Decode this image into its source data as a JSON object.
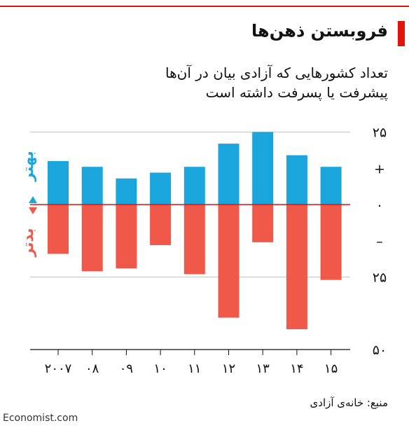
{
  "header": {
    "title": "فروبستن ذهن‌ها",
    "subtitle": "تعداد کشورهایی که آزادی بیان در آن‌ها پیشرفت یا پسرفت داشته است"
  },
  "colors": {
    "better": "#1aa5dc",
    "worse": "#f0584a",
    "zero_line": "#e3120b",
    "gridline": "#c4c4c4",
    "accent": "#e3120b"
  },
  "legend": {
    "better_label": "بهتر",
    "worse_label": "بدتر"
  },
  "chart_data": {
    "type": "bar",
    "categories": [
      "۲۰۰۷",
      "۰۸",
      "۰۹",
      "۱۰",
      "۱۱",
      "۱۲",
      "۱۳",
      "۱۴",
      "۱۵"
    ],
    "series": [
      {
        "name": "بهتر",
        "values": [
          15,
          13,
          9,
          11,
          13,
          21,
          25,
          17,
          13
        ]
      },
      {
        "name": "بدتر",
        "values": [
          -17,
          -23,
          -22,
          -14,
          -24,
          -39,
          -13,
          -43,
          -26
        ]
      }
    ],
    "ylim": [
      -50,
      25
    ],
    "yticks": [
      {
        "value": 25,
        "label": "۲۵"
      },
      {
        "value": 12.5,
        "label": "+"
      },
      {
        "value": 0,
        "label": "۰"
      },
      {
        "value": -12.5,
        "label": "–"
      },
      {
        "value": -25,
        "label": "۲۵"
      },
      {
        "value": -50,
        "label": "۵۰"
      }
    ],
    "grid": true
  },
  "footer": {
    "source": "منبع: خانه‌ی آزادی",
    "brand": "Economist.com"
  }
}
